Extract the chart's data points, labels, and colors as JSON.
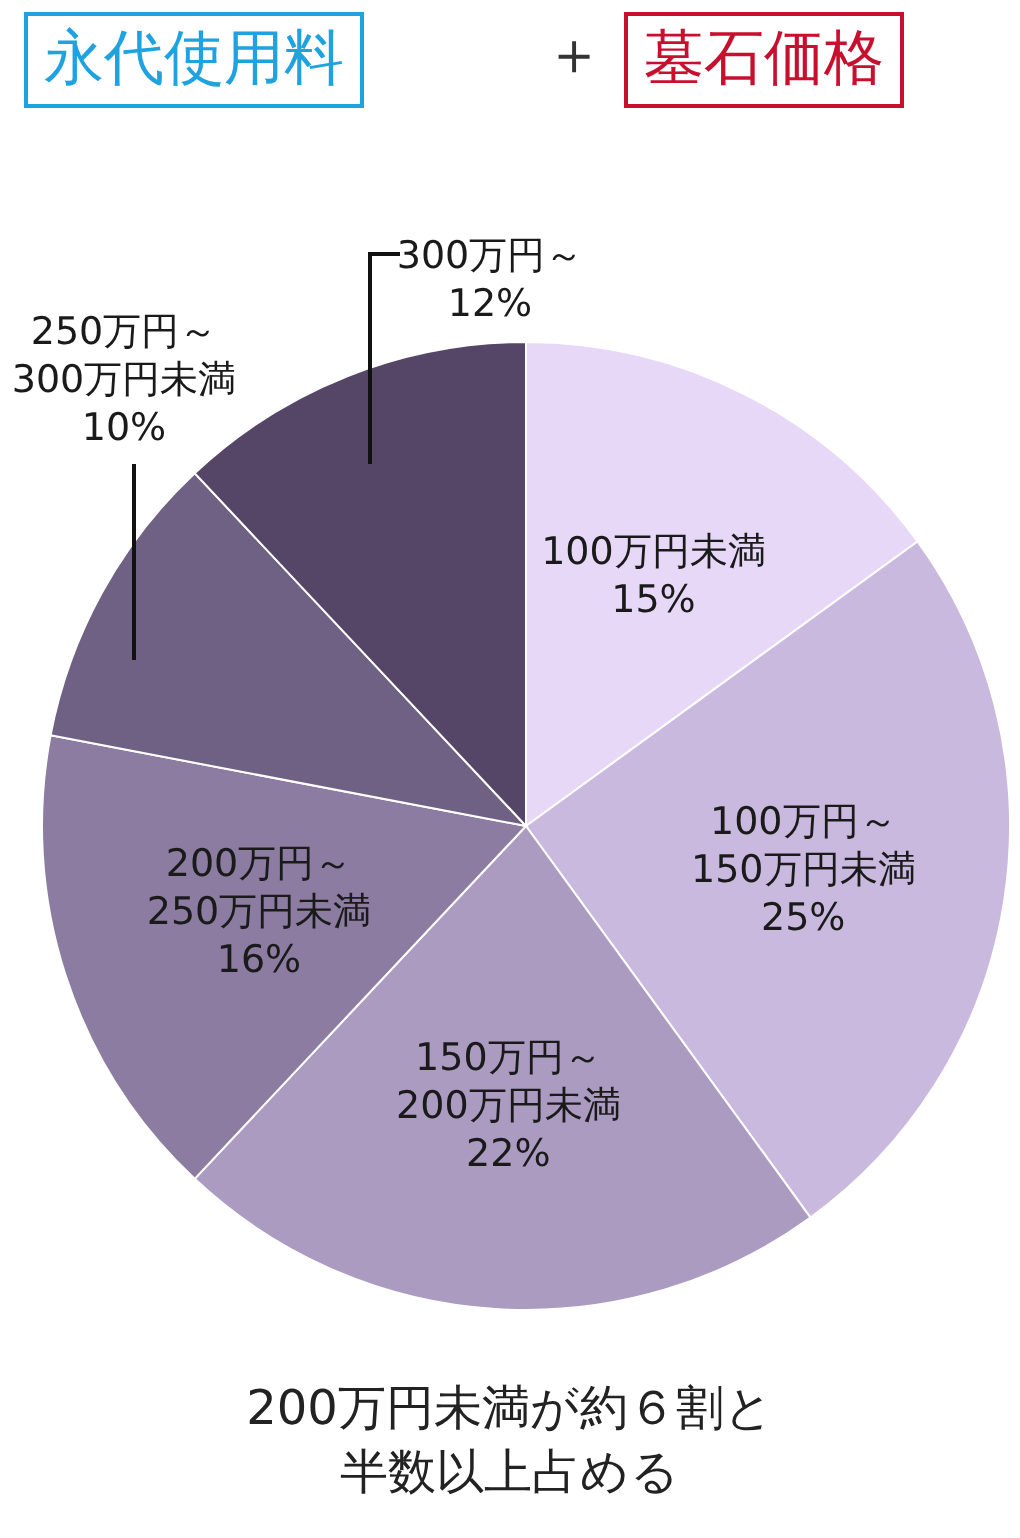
{
  "chart_data": {
    "type": "pie",
    "title": "永代使用料",
    "subtitle": "墓石価格",
    "annotations": [
      "＋",
      "200万円未満が約６割と半数以上占める"
    ],
    "categories": [
      "100万円未満",
      "100万円～150万円未満",
      "150万円～200万円未満",
      "200万円～250万円未満",
      "250万円～300万円未満",
      "300万円～"
    ],
    "values": [
      15,
      25,
      22,
      16,
      10,
      12
    ],
    "colors": [
      "#e8d8f8",
      "#c9b9de",
      "#ab9bc1",
      "#8c7ca1",
      "#6f6184",
      "#554667"
    ],
    "value_labels": [
      "15%",
      "25%",
      "22%",
      "16%",
      "10%",
      "12%"
    ]
  }
}
